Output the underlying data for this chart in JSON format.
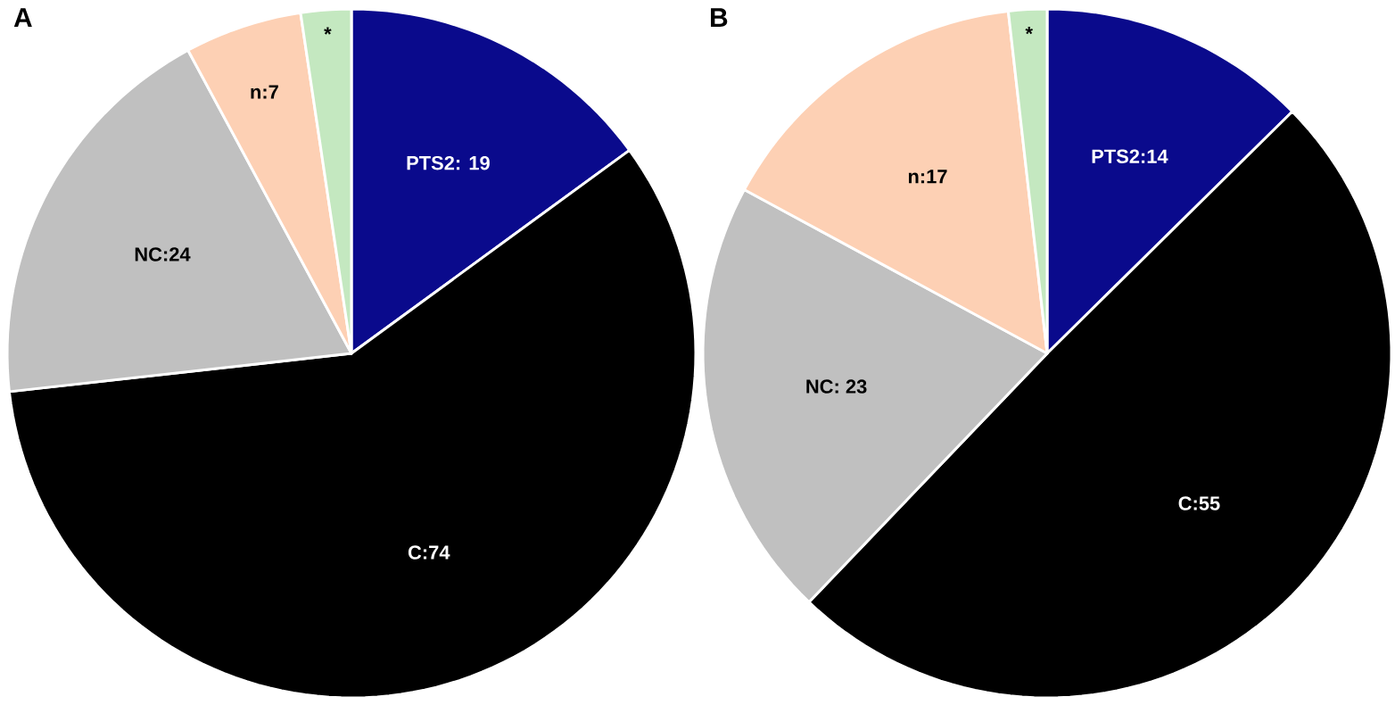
{
  "chart_data": [
    {
      "type": "pie",
      "title": "A",
      "categories": [
        "PTS2: 19",
        "C:74",
        "NC:24",
        "n:7",
        "*"
      ],
      "values": [
        19,
        74,
        24,
        7,
        3
      ],
      "colors": [
        "#0a0a8c",
        "#000000",
        "#c0c0c0",
        "#fdd0b4",
        "#c4e8c0"
      ]
    },
    {
      "type": "pie",
      "title": "B",
      "categories": [
        "PTS2:14",
        "C:55",
        "NC: 23",
        "n:17",
        "*"
      ],
      "values": [
        14,
        55,
        23,
        17,
        2
      ],
      "colors": [
        "#0a0a8c",
        "#000000",
        "#c0c0c0",
        "#fdd0b4",
        "#c4e8c0"
      ]
    }
  ]
}
